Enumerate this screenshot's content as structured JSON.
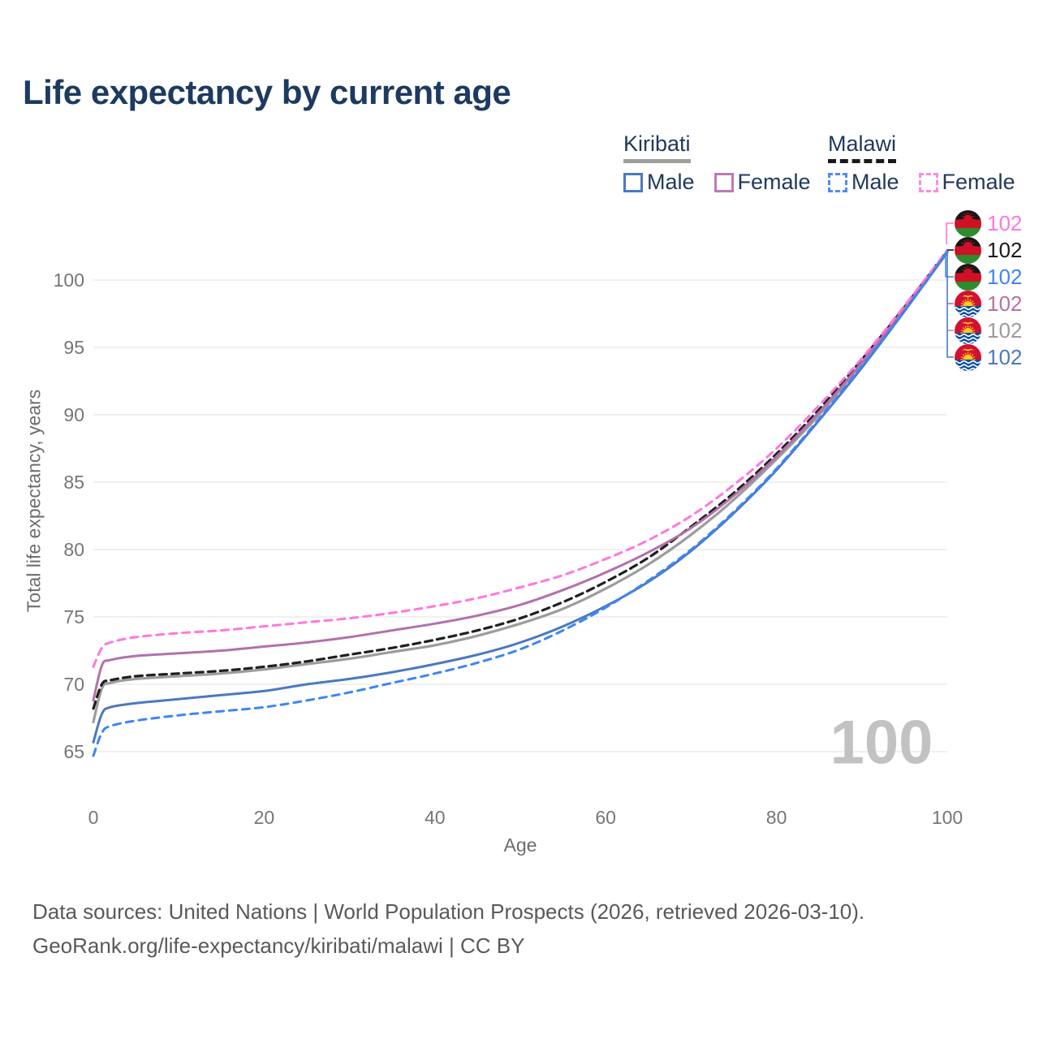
{
  "title": "Life expectancy by current age",
  "watermark": "100",
  "legend": {
    "kiribati": {
      "label": "Kiribati",
      "male_label": "Male",
      "female_label": "Female"
    },
    "malawi": {
      "label": "Malawi",
      "male_label": "Male",
      "female_label": "Female"
    }
  },
  "end_labels": [
    {
      "flag": "malawi",
      "series": "Malawi Female",
      "value": "102",
      "color": "#ff77dd"
    },
    {
      "flag": "malawi",
      "series": "Malawi",
      "value": "102",
      "color": "#1a1a1a"
    },
    {
      "flag": "malawi",
      "series": "Malawi Male",
      "value": "102",
      "color": "#3d85f7"
    },
    {
      "flag": "kiribati",
      "series": "Kiribati Female",
      "value": "102",
      "color": "#b271ac"
    },
    {
      "flag": "kiribati",
      "series": "Kiribati",
      "value": "102",
      "color": "#9c9c9c"
    },
    {
      "flag": "kiribati",
      "series": "Kiribati Male",
      "value": "102",
      "color": "#4b79c0"
    }
  ],
  "footer": {
    "line1": "Data sources: United Nations | World Population Prospects (2026, retrieved 2026-03-10).",
    "line2": "GeoRank.org/life-expectancy/kiribati/malawi | CC BY"
  },
  "chart_data": {
    "type": "line",
    "title": "Life expectancy by current age",
    "xlabel": "Age",
    "ylabel": "Total life expectancy, years",
    "xlim": [
      0,
      100
    ],
    "ylim": [
      63,
      104
    ],
    "x_ticks": [
      0,
      20,
      40,
      60,
      80,
      100
    ],
    "y_ticks": [
      65,
      70,
      75,
      80,
      85,
      90,
      95,
      100
    ],
    "grid": "horizontal",
    "legend_position": "top-right",
    "x": [
      0,
      1,
      2,
      5,
      10,
      15,
      20,
      25,
      30,
      35,
      40,
      45,
      50,
      55,
      60,
      65,
      70,
      75,
      80,
      85,
      90,
      95,
      100
    ],
    "series": [
      {
        "name": "Malawi Female",
        "country": "Malawi",
        "sex": "Female",
        "style": "dashed",
        "color": "#ff77dd",
        "end_value": 102,
        "values": [
          71.3,
          72.7,
          73.1,
          73.5,
          73.8,
          74.0,
          74.3,
          74.6,
          74.9,
          75.3,
          75.8,
          76.4,
          77.2,
          78.1,
          79.3,
          80.7,
          82.5,
          84.8,
          87.5,
          90.7,
          94.2,
          98.1,
          102.2
        ]
      },
      {
        "name": "Malawi",
        "country": "Malawi",
        "sex": "Total",
        "style": "dashed",
        "color": "#1f1f1f",
        "end_value": 102,
        "values": [
          68.2,
          70.0,
          70.3,
          70.6,
          70.8,
          71.0,
          71.3,
          71.7,
          72.2,
          72.7,
          73.3,
          74.0,
          74.9,
          76.1,
          77.6,
          79.4,
          81.7,
          84.2,
          87.1,
          90.4,
          94.1,
          98.0,
          102.2
        ]
      },
      {
        "name": "Malawi Male",
        "country": "Malawi",
        "sex": "Male",
        "style": "dashed",
        "color": "#3d85f7",
        "end_value": 102,
        "values": [
          64.7,
          66.4,
          66.9,
          67.3,
          67.7,
          68.0,
          68.3,
          68.8,
          69.4,
          70.1,
          70.8,
          71.6,
          72.6,
          74.0,
          75.7,
          77.7,
          80.0,
          82.8,
          86.0,
          89.7,
          93.6,
          97.7,
          102.1
        ]
      },
      {
        "name": "Kiribati Female",
        "country": "Kiribati",
        "sex": "Female",
        "style": "solid",
        "color": "#b271ac",
        "end_value": 102,
        "values": [
          68.8,
          71.4,
          71.8,
          72.1,
          72.3,
          72.5,
          72.8,
          73.1,
          73.5,
          74.0,
          74.5,
          75.1,
          75.9,
          77.0,
          78.3,
          79.8,
          81.6,
          84.0,
          86.9,
          90.2,
          93.9,
          97.9,
          102.15
        ]
      },
      {
        "name": "Kiribati",
        "country": "Kiribati",
        "sex": "Total",
        "style": "solid",
        "color": "#9c9c9c",
        "end_value": 102,
        "values": [
          67.2,
          69.7,
          70.1,
          70.4,
          70.6,
          70.8,
          71.1,
          71.5,
          71.9,
          72.4,
          72.9,
          73.6,
          74.5,
          75.6,
          77.1,
          78.9,
          81.1,
          83.7,
          86.7,
          90.0,
          93.8,
          97.8,
          102.1
        ]
      },
      {
        "name": "Kiribati Male",
        "country": "Kiribati",
        "sex": "Male",
        "style": "solid",
        "color": "#4b79c0",
        "end_value": 102,
        "values": [
          65.7,
          67.8,
          68.3,
          68.6,
          68.9,
          69.2,
          69.5,
          70.0,
          70.4,
          70.9,
          71.5,
          72.2,
          73.1,
          74.3,
          75.8,
          77.6,
          79.9,
          82.7,
          85.9,
          89.6,
          93.5,
          97.7,
          102.05
        ]
      }
    ]
  }
}
